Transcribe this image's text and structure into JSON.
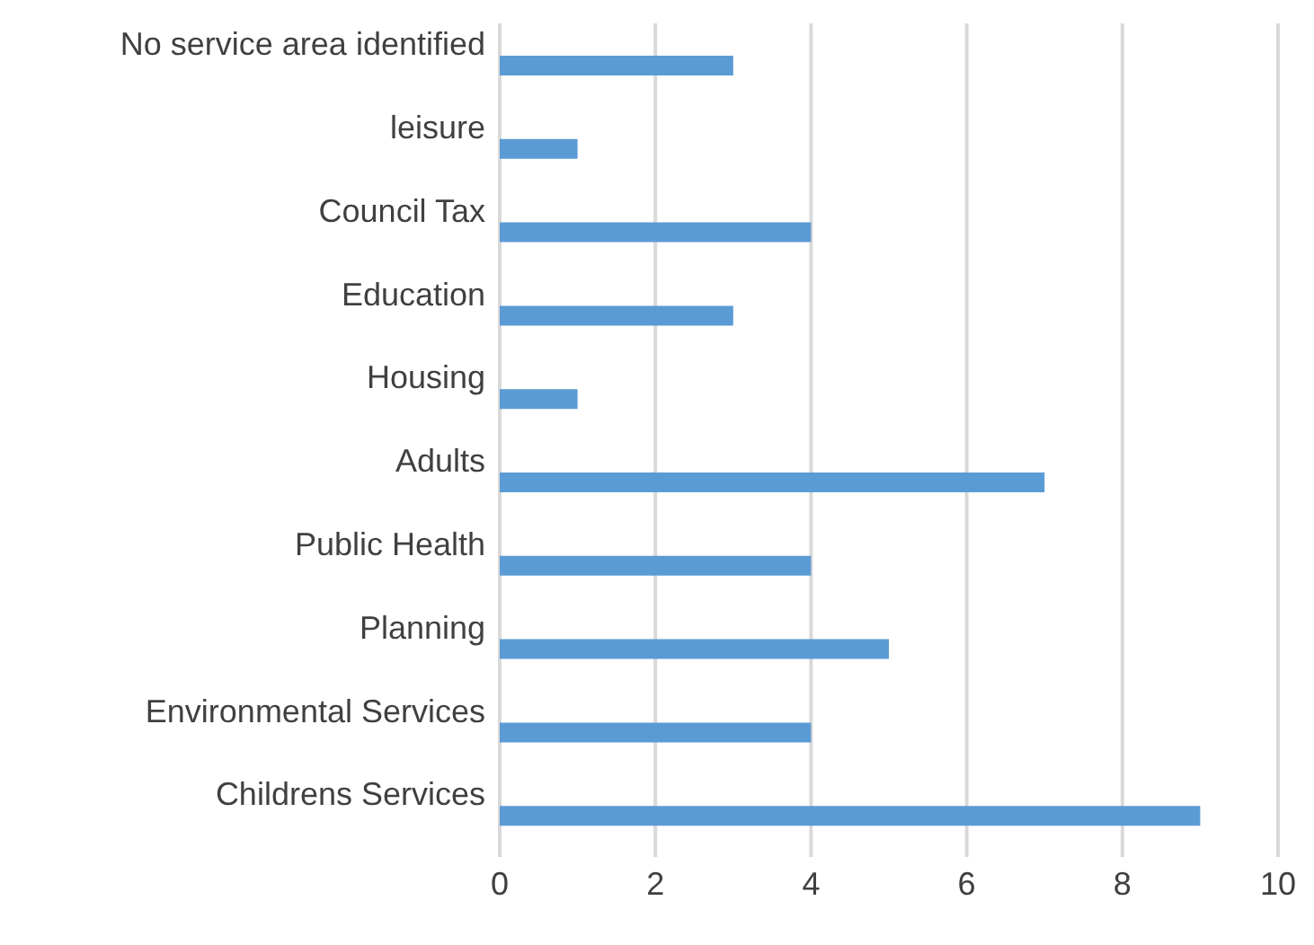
{
  "chart_data": {
    "type": "bar",
    "orientation": "horizontal",
    "categories": [
      "No service area identified",
      "leisure",
      "Council Tax",
      "Education",
      "Housing",
      "Adults",
      "Public Health",
      "Planning",
      "Environmental Services",
      "Childrens Services"
    ],
    "values": [
      3,
      1,
      4,
      3,
      1,
      7,
      4,
      5,
      4,
      9
    ],
    "color": "#5b9bd5",
    "xlim": [
      0,
      10
    ],
    "xticks": [
      0,
      2,
      4,
      6,
      8,
      10
    ],
    "grid": "x",
    "legend": false
  }
}
